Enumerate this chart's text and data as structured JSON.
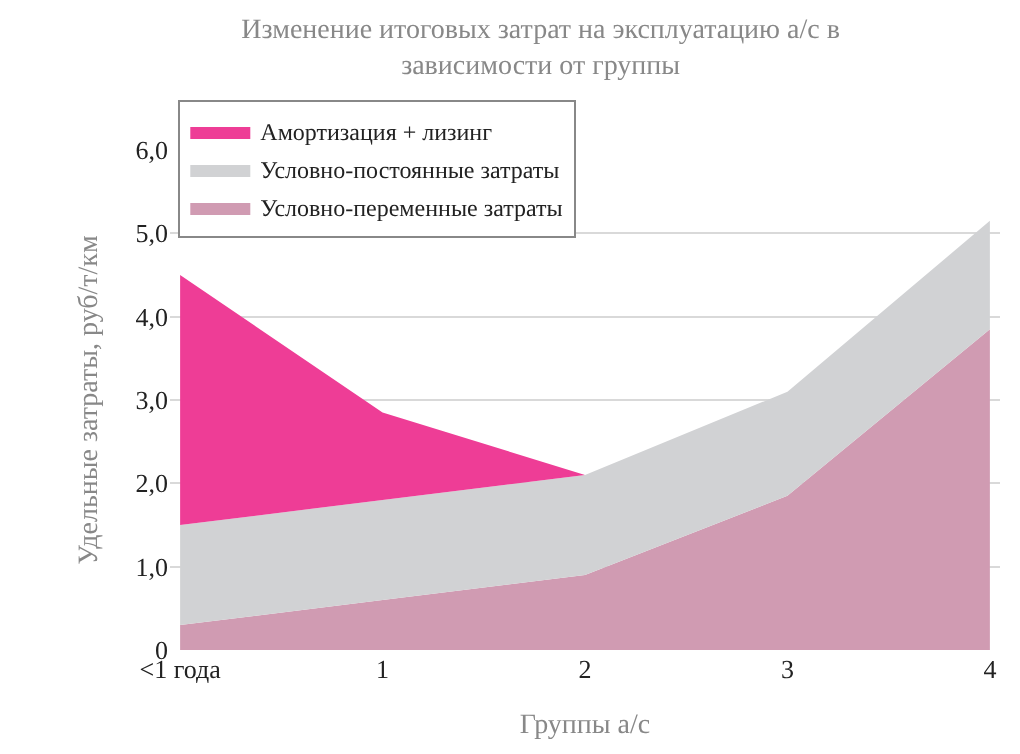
{
  "chart_data": {
    "type": "area",
    "title": "Изменение итоговых затрат на эксплуатацию а/с в\nзависимости от группы",
    "xlabel": "Группы а/с",
    "ylabel": "Удельные затраты, руб/т/км",
    "categories": [
      "<1 года",
      "1",
      "2",
      "3",
      "4"
    ],
    "stacked": true,
    "series": [
      {
        "name": "Условно-переменные затраты",
        "color": "#d09bb2",
        "values": [
          0.3,
          0.6,
          0.9,
          1.85,
          3.85
        ]
      },
      {
        "name": "Условно-постоянные затраты",
        "color": "#d1d2d4",
        "values": [
          1.2,
          1.2,
          1.2,
          1.25,
          1.3
        ]
      },
      {
        "name": "Амортизация + лизинг",
        "color": "#ee3d96",
        "values": [
          3.0,
          1.05,
          0,
          0,
          0
        ]
      }
    ],
    "ylim": [
      0,
      6
    ],
    "yticks": [
      {
        "value": 0,
        "label": "0"
      },
      {
        "value": 1,
        "label": "1,0"
      },
      {
        "value": 2,
        "label": "2,0"
      },
      {
        "value": 3,
        "label": "3,0"
      },
      {
        "value": 4,
        "label": "4,0"
      },
      {
        "value": 5,
        "label": "5,0"
      },
      {
        "value": 6,
        "label": "6,0"
      }
    ],
    "grid": "y",
    "legend": "top left"
  }
}
